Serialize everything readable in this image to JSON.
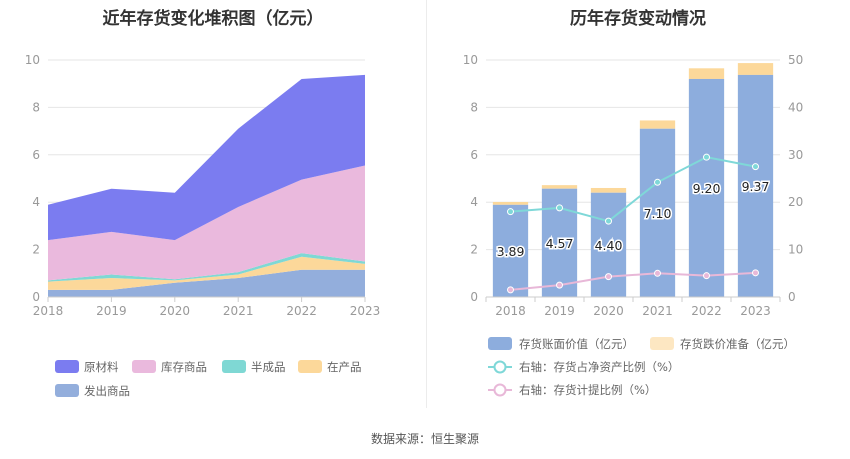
{
  "page": {
    "source_prefix": "数据来源：",
    "source_name": "恒生聚源"
  },
  "colors": {
    "raw_material": "#7b7cf0",
    "goods_in_stock": "#eab9dd",
    "semi_finished": "#7fd8d4",
    "wip": "#fcd89a",
    "goods_shipped": "#93aedc",
    "bar_value": "#8daddd",
    "bar_provision": "#fcd89a",
    "line_ratio_net": "#7fd8d8",
    "line_provision_ratio": "#e8b8d8",
    "grid": "#e6e6e6"
  },
  "chart_data": [
    {
      "type": "area",
      "stacked": true,
      "title": "近年存货变化堆积图（亿元）",
      "x": [
        "2018",
        "2019",
        "2020",
        "2021",
        "2022",
        "2023"
      ],
      "ylim": [
        0,
        10
      ],
      "yticks": [
        "0",
        "2",
        "4",
        "6",
        "8",
        "10"
      ],
      "grid": true,
      "legend_position": "bottom",
      "series": [
        {
          "name": "发出商品",
          "color_key": "goods_shipped",
          "values": [
            0.3,
            0.3,
            0.6,
            0.8,
            1.15,
            1.15
          ]
        },
        {
          "name": "在产品",
          "color_key": "wip",
          "values": [
            0.35,
            0.5,
            0.1,
            0.15,
            0.55,
            0.25
          ]
        },
        {
          "name": "半成品",
          "color_key": "semi_finished",
          "values": [
            0.05,
            0.15,
            0.05,
            0.1,
            0.15,
            0.1
          ]
        },
        {
          "name": "库存商品",
          "color_key": "goods_in_stock",
          "values": [
            1.7,
            1.8,
            1.65,
            2.75,
            3.1,
            4.05
          ]
        },
        {
          "name": "原材料",
          "color_key": "raw_material",
          "values": [
            1.49,
            1.82,
            2.0,
            3.3,
            4.25,
            3.82
          ]
        }
      ],
      "legend": [
        {
          "name": "原材料",
          "color_key": "raw_material"
        },
        {
          "name": "库存商品",
          "color_key": "goods_in_stock"
        },
        {
          "name": "半成品",
          "color_key": "semi_finished"
        },
        {
          "name": "在产品",
          "color_key": "wip"
        },
        {
          "name": "发出商品",
          "color_key": "goods_shipped"
        }
      ]
    },
    {
      "type": "bar",
      "title": "历年存货变动情况",
      "categories": [
        "2018",
        "2019",
        "2020",
        "2021",
        "2022",
        "2023"
      ],
      "ylim": [
        0,
        10
      ],
      "yticks": [
        "0",
        "2",
        "4",
        "6",
        "8",
        "10"
      ],
      "y2lim": [
        0,
        50
      ],
      "y2ticks": [
        "0",
        "10",
        "20",
        "30",
        "40",
        "50"
      ],
      "grid": true,
      "legend_position": "bottom",
      "bar_series": [
        {
          "name": "存货账面价值（亿元）",
          "color_key": "bar_value",
          "values": [
            3.89,
            4.57,
            4.4,
            7.1,
            9.2,
            9.37
          ],
          "labels": [
            "3.89",
            "4.57",
            "4.40",
            "7.10",
            "9.20",
            "9.37"
          ]
        },
        {
          "name": "存货跌价准备（亿元）",
          "color_key": "bar_provision",
          "values": [
            0.12,
            0.15,
            0.2,
            0.35,
            0.45,
            0.5
          ]
        }
      ],
      "line_series": [
        {
          "name": "右轴：存货占净资产比例（%）",
          "color_key": "line_ratio_net",
          "axis": "right",
          "values": [
            18.0,
            18.8,
            16.0,
            24.2,
            29.5,
            27.5
          ]
        },
        {
          "name": "右轴：存货计提比例（%）",
          "color_key": "line_provision_ratio",
          "axis": "right",
          "values": [
            1.5,
            2.5,
            4.3,
            5.0,
            4.5,
            5.1
          ]
        }
      ]
    }
  ]
}
